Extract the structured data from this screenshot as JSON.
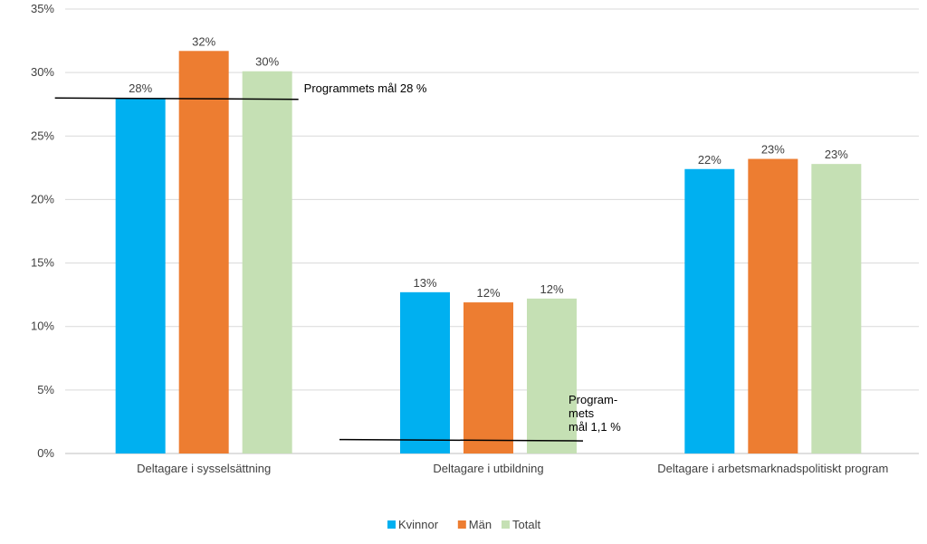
{
  "chart_data": {
    "type": "bar",
    "categories": [
      "Deltagare i sysselsättning",
      "Deltagare i utbildning",
      "Deltagare i arbetsmarknadspolitiskt program"
    ],
    "series": [
      {
        "name": "Kvinnor",
        "color": "#00b0f0",
        "values": [
          28,
          12.7,
          22.4
        ],
        "labels": [
          "28%",
          "13%",
          "22%"
        ]
      },
      {
        "name": "Män",
        "color": "#ed7d31",
        "values": [
          31.7,
          11.9,
          23.2
        ],
        "labels": [
          "32%",
          "12%",
          "23%"
        ]
      },
      {
        "name": "Totalt",
        "color": "#c5e0b4",
        "values": [
          30.1,
          12.2,
          22.8
        ],
        "labels": [
          "30%",
          "12%",
          "23%"
        ]
      }
    ],
    "ylim": [
      0,
      35
    ],
    "yticks": [
      0,
      5,
      10,
      15,
      20,
      25,
      30,
      35
    ],
    "ytick_labels": [
      "0%",
      "5%",
      "10%",
      "15%",
      "20%",
      "25%",
      "30%",
      "35%"
    ],
    "grid": true,
    "legend_position": "bottom",
    "targets": [
      {
        "category": "Deltagare i sysselsättning",
        "value": 28,
        "label_lines": [
          "Programmets mål 28 %"
        ]
      },
      {
        "category": "Deltagare i utbildning",
        "value": 1.1,
        "label_lines": [
          "Program-",
          "mets",
          "mål 1,1 %"
        ]
      }
    ]
  }
}
